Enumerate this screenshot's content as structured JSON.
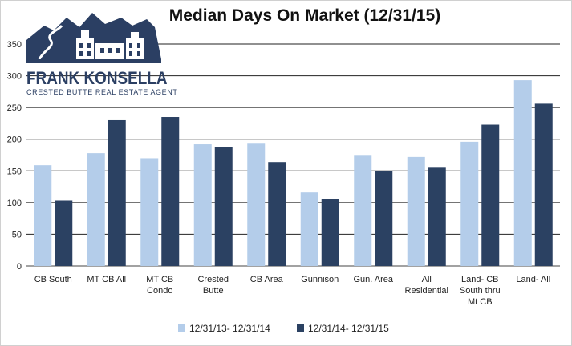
{
  "logo": {
    "name": "FRANK KONSELLA",
    "tagline": "CRESTED BUTTE REAL ESTATE AGENT",
    "color": "#2b3f63"
  },
  "chart_data": {
    "type": "bar",
    "title": "Median Days On Market (12/31/15)",
    "xlabel": "",
    "ylabel": "",
    "ylim": [
      0,
      350
    ],
    "yticks": [
      0,
      50,
      100,
      150,
      200,
      250,
      300,
      350
    ],
    "grid": true,
    "legend_position": "bottom",
    "categories": [
      [
        "CB South"
      ],
      [
        "MT CB All"
      ],
      [
        "MT CB",
        "Condo"
      ],
      [
        "Crested",
        "Butte"
      ],
      [
        "CB Area"
      ],
      [
        "Gunnison"
      ],
      [
        "Gun. Area"
      ],
      [
        "All",
        "Residential"
      ],
      [
        "Land- CB",
        "South thru",
        "Mt CB"
      ],
      [
        "Land- All"
      ]
    ],
    "series": [
      {
        "name": "12/31/13- 12/31/14",
        "color": "#b4cdea",
        "values": [
          159,
          178,
          170,
          192,
          193,
          116,
          174,
          172,
          196,
          293
        ]
      },
      {
        "name": "12/31/14- 12/31/15",
        "color": "#2b4162",
        "values": [
          103,
          230,
          235,
          188,
          164,
          106,
          150,
          155,
          223,
          256
        ]
      }
    ]
  }
}
